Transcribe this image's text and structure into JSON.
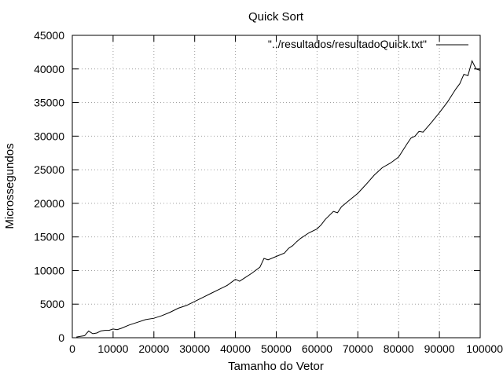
{
  "chart_data": {
    "type": "line",
    "title": "Quick Sort",
    "xlabel": "Tamanho do Vetor",
    "ylabel": "Microssegundos",
    "xlim": [
      0,
      100000
    ],
    "ylim": [
      0,
      45000
    ],
    "xticks": [
      0,
      10000,
      20000,
      30000,
      40000,
      50000,
      60000,
      70000,
      80000,
      90000,
      100000
    ],
    "yticks": [
      0,
      5000,
      10000,
      15000,
      20000,
      25000,
      30000,
      35000,
      40000,
      45000
    ],
    "grid": true,
    "legend_position": "top-right",
    "series": [
      {
        "name": "\"../resultados/resultadoQuick.txt\"",
        "color": "#000000",
        "x": [
          1000,
          2000,
          3000,
          4000,
          5000,
          6000,
          7000,
          8000,
          9000,
          10000,
          11000,
          12000,
          14000,
          16000,
          18000,
          20000,
          22000,
          24000,
          26000,
          28000,
          30000,
          32000,
          34000,
          36000,
          38000,
          40000,
          41000,
          42000,
          44000,
          46000,
          47000,
          48000,
          50000,
          52000,
          53000,
          54000,
          55000,
          56000,
          58000,
          60000,
          61000,
          62000,
          64000,
          65000,
          66000,
          68000,
          70000,
          72000,
          74000,
          76000,
          78000,
          80000,
          82000,
          83000,
          84000,
          85000,
          86000,
          88000,
          90000,
          92000,
          94000,
          95000,
          96000,
          97000,
          98000,
          99000,
          100000
        ],
        "y": [
          100,
          200,
          300,
          1000,
          600,
          700,
          1000,
          1100,
          1100,
          1300,
          1200,
          1400,
          1900,
          2300,
          2700,
          2900,
          3300,
          3800,
          4400,
          4800,
          5400,
          6000,
          6600,
          7200,
          7800,
          8700,
          8400,
          8800,
          9600,
          10500,
          11800,
          11600,
          12100,
          12600,
          13300,
          13700,
          14300,
          14800,
          15600,
          16200,
          16800,
          17600,
          18800,
          18600,
          19500,
          20500,
          21500,
          22800,
          24200,
          25300,
          26000,
          26900,
          28800,
          29700,
          30000,
          30700,
          30600,
          32000,
          33500,
          35100,
          37000,
          37800,
          39200,
          39000,
          41200,
          40000,
          39800
        ]
      }
    ]
  }
}
